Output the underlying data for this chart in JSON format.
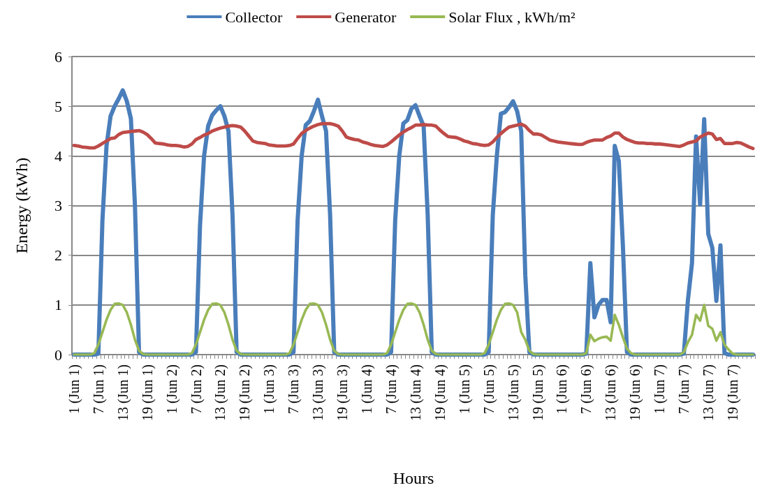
{
  "chart_data": {
    "type": "line",
    "xlabel": "Hours",
    "ylabel": "Energy (kWh)",
    "categories": [
      "1 (Jun 1)",
      null,
      null,
      null,
      null,
      null,
      "7 (Jun 1)",
      null,
      null,
      null,
      null,
      null,
      "13 (Jun 1)",
      null,
      null,
      null,
      null,
      null,
      "19 (Jun 1)",
      null,
      null,
      null,
      null,
      null,
      "1 (Jun 2)",
      null,
      null,
      null,
      null,
      null,
      "7 (Jun 2)",
      null,
      null,
      null,
      null,
      null,
      "13 (Jun 2)",
      null,
      null,
      null,
      null,
      null,
      "19 (Jun 2)",
      null,
      null,
      null,
      null,
      null,
      "1 (Jun 3)",
      null,
      null,
      null,
      null,
      null,
      "7 (Jun 3)",
      null,
      null,
      null,
      null,
      null,
      "13 (Jun 3)",
      null,
      null,
      null,
      null,
      null,
      "19 (Jun 3)",
      null,
      null,
      null,
      null,
      null,
      "1 (Jun 4)",
      null,
      null,
      null,
      null,
      null,
      "7 (Jun 4)",
      null,
      null,
      null,
      null,
      null,
      "13 (Jun 4)",
      null,
      null,
      null,
      null,
      null,
      "19 (Jun 4)",
      null,
      null,
      null,
      null,
      null,
      "1 (Jun 5)",
      null,
      null,
      null,
      null,
      null,
      "7 (Jun 5)",
      null,
      null,
      null,
      null,
      null,
      "13 (Jun 5)",
      null,
      null,
      null,
      null,
      null,
      "19 (Jun 5)",
      null,
      null,
      null,
      null,
      null,
      "1 (Jun 6)",
      null,
      null,
      null,
      null,
      null,
      "7 (Jun 6)",
      null,
      null,
      null,
      null,
      null,
      "13 (Jun 6)",
      null,
      null,
      null,
      null,
      null,
      "19 (Jun 6)",
      null,
      null,
      null,
      null,
      null,
      "1 (Jun 7)",
      null,
      null,
      null,
      null,
      null,
      "7 (Jun 7)",
      null,
      null,
      null,
      null,
      null,
      "13 (Jun 7)",
      null,
      null,
      null,
      null,
      null,
      "19 (Jun 7)",
      null,
      null,
      null,
      null,
      null
    ],
    "series": [
      {
        "name": "Collector",
        "color": "#4a7ebb",
        "values": [
          0,
          0,
          0,
          0,
          0,
          0,
          0.02,
          2.7,
          4.2,
          4.8,
          5.0,
          5.15,
          5.32,
          5.1,
          4.75,
          3.0,
          0.05,
          0,
          0,
          0,
          0,
          0,
          0,
          0,
          0,
          0,
          0,
          0,
          0,
          0,
          0.05,
          2.6,
          4.0,
          4.6,
          4.82,
          4.92,
          5.0,
          4.8,
          4.5,
          2.8,
          0.05,
          0,
          0,
          0,
          0,
          0,
          0,
          0,
          0,
          0,
          0,
          0,
          0,
          0,
          0.05,
          2.7,
          4.0,
          4.62,
          4.7,
          4.9,
          5.13,
          4.8,
          4.5,
          2.8,
          0.05,
          0,
          0,
          0,
          0,
          0,
          0,
          0,
          0,
          0,
          0,
          0,
          0,
          0,
          0.05,
          2.7,
          4.0,
          4.65,
          4.72,
          4.95,
          5.02,
          4.8,
          4.6,
          2.8,
          0.05,
          0,
          0,
          0,
          0,
          0,
          0,
          0,
          0,
          0,
          0,
          0,
          0,
          0,
          0.05,
          2.8,
          4.0,
          4.85,
          4.88,
          4.98,
          5.1,
          4.9,
          4.5,
          1.6,
          0.05,
          0,
          0,
          0,
          0,
          0,
          0,
          0,
          0,
          0,
          0,
          0,
          0,
          0,
          0.02,
          1.84,
          0.75,
          1.0,
          1.1,
          1.1,
          0.65,
          4.2,
          3.9,
          2.2,
          0.05,
          0,
          0,
          0,
          0,
          0,
          0,
          0,
          0,
          0,
          0,
          0,
          0,
          0,
          0.02,
          1.1,
          1.84,
          4.39,
          3.02,
          4.74,
          2.43,
          2.15,
          1.08,
          2.2,
          0.03,
          0,
          0,
          0,
          0,
          0,
          0,
          0
        ]
      },
      {
        "name": "Generator",
        "color": "#be4b48",
        "values": [
          4.21,
          4.2,
          4.18,
          4.17,
          4.16,
          4.16,
          4.2,
          4.25,
          4.3,
          4.35,
          4.36,
          4.43,
          4.47,
          4.48,
          4.49,
          4.5,
          4.51,
          4.48,
          4.43,
          4.35,
          4.26,
          4.25,
          4.24,
          4.22,
          4.21,
          4.21,
          4.2,
          4.18,
          4.19,
          4.24,
          4.33,
          4.37,
          4.42,
          4.45,
          4.5,
          4.53,
          4.56,
          4.58,
          4.6,
          4.61,
          4.6,
          4.58,
          4.5,
          4.4,
          4.3,
          4.27,
          4.26,
          4.25,
          4.22,
          4.21,
          4.2,
          4.2,
          4.2,
          4.21,
          4.24,
          4.35,
          4.45,
          4.51,
          4.56,
          4.6,
          4.63,
          4.65,
          4.65,
          4.65,
          4.63,
          4.6,
          4.5,
          4.38,
          4.35,
          4.33,
          4.32,
          4.28,
          4.26,
          4.23,
          4.21,
          4.2,
          4.19,
          4.22,
          4.28,
          4.35,
          4.42,
          4.48,
          4.53,
          4.57,
          4.62,
          4.62,
          4.63,
          4.62,
          4.62,
          4.6,
          4.52,
          4.45,
          4.39,
          4.38,
          4.37,
          4.34,
          4.3,
          4.28,
          4.25,
          4.24,
          4.22,
          4.21,
          4.22,
          4.28,
          4.37,
          4.45,
          4.52,
          4.58,
          4.6,
          4.62,
          4.64,
          4.6,
          4.51,
          4.44,
          4.44,
          4.42,
          4.37,
          4.32,
          4.3,
          4.28,
          4.27,
          4.26,
          4.25,
          4.24,
          4.23,
          4.23,
          4.27,
          4.3,
          4.32,
          4.32,
          4.32,
          4.37,
          4.4,
          4.46,
          4.46,
          4.38,
          4.33,
          4.3,
          4.27,
          4.26,
          4.26,
          4.25,
          4.25,
          4.24,
          4.24,
          4.23,
          4.22,
          4.21,
          4.2,
          4.19,
          4.22,
          4.26,
          4.28,
          4.3,
          4.38,
          4.42,
          4.46,
          4.44,
          4.33,
          4.35,
          4.25,
          4.25,
          4.25,
          4.27,
          4.26,
          4.22,
          4.18,
          4.15
        ]
      },
      {
        "name": "Solar Flux , kWh/m²",
        "color": "#98b954",
        "values": [
          0,
          0,
          0,
          0,
          0,
          0.03,
          0.2,
          0.45,
          0.7,
          0.9,
          1.02,
          1.03,
          1.0,
          0.85,
          0.6,
          0.3,
          0.08,
          0.01,
          0,
          0,
          0,
          0,
          0,
          0,
          0,
          0,
          0,
          0,
          0,
          0.03,
          0.2,
          0.45,
          0.7,
          0.9,
          1.02,
          1.03,
          1.0,
          0.85,
          0.6,
          0.3,
          0.08,
          0.01,
          0,
          0,
          0,
          0,
          0,
          0,
          0,
          0,
          0,
          0,
          0,
          0.03,
          0.2,
          0.45,
          0.7,
          0.9,
          1.02,
          1.03,
          1.0,
          0.85,
          0.6,
          0.3,
          0.08,
          0.01,
          0,
          0,
          0,
          0,
          0,
          0,
          0,
          0,
          0,
          0,
          0,
          0.03,
          0.2,
          0.45,
          0.7,
          0.9,
          1.02,
          1.03,
          1.0,
          0.85,
          0.6,
          0.3,
          0.08,
          0.01,
          0,
          0,
          0,
          0,
          0,
          0,
          0,
          0,
          0,
          0,
          0,
          0.03,
          0.2,
          0.45,
          0.7,
          0.9,
          1.02,
          1.03,
          1.0,
          0.85,
          0.45,
          0.3,
          0.08,
          0.01,
          0,
          0,
          0,
          0,
          0,
          0,
          0,
          0,
          0,
          0,
          0,
          0,
          0.03,
          0.4,
          0.27,
          0.32,
          0.35,
          0.36,
          0.28,
          0.8,
          0.6,
          0.35,
          0.12,
          0.03,
          0,
          0,
          0,
          0,
          0,
          0,
          0,
          0,
          0,
          0,
          0,
          0,
          0.05,
          0.25,
          0.4,
          0.8,
          0.68,
          1.0,
          0.58,
          0.52,
          0.28,
          0.45,
          0.2,
          0.1,
          0.02,
          0,
          0,
          0,
          0,
          0
        ]
      }
    ],
    "ylim": [
      0,
      6
    ],
    "yticks": [
      0,
      1,
      2,
      3,
      4,
      5,
      6
    ],
    "grid": "y",
    "legend": "top",
    "marker": "none",
    "line_style": "solid"
  }
}
